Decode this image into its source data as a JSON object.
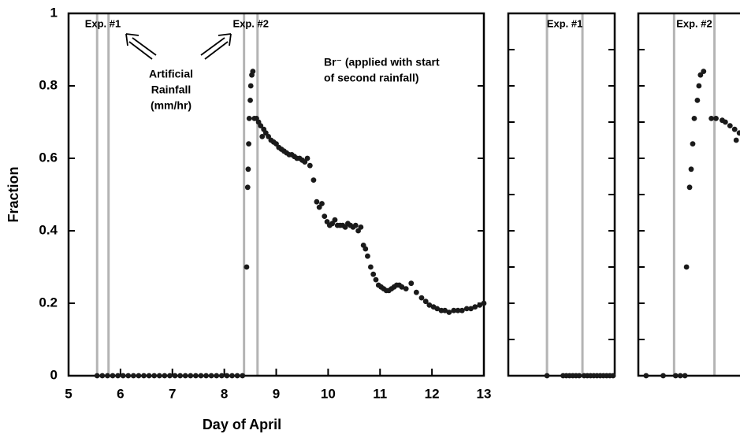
{
  "chart_data": [
    {
      "type": "scatter",
      "xlabel": "Day of April",
      "ylabel": "Fraction",
      "color": "#1a1a1a",
      "vline_color": "#b4b4b4",
      "xlim": [
        5,
        13
      ],
      "ylim": [
        0,
        1
      ],
      "xticks": [
        5,
        6,
        7,
        8,
        9,
        10,
        11,
        12,
        13
      ],
      "yticks": [
        0,
        0.2,
        0.4,
        0.6,
        0.8,
        1
      ],
      "vlines": [
        5.55,
        5.77,
        8.38,
        8.64
      ],
      "exp_labels": [
        "Exp. #1",
        "Exp. #2"
      ],
      "annotations": [
        [
          "Artificial",
          "Rainfall",
          "(mm/hr)"
        ],
        [
          "Br⁻ (applied with start",
          "of second rainfall)"
        ]
      ],
      "x": [
        5.55,
        5.65,
        5.75,
        5.85,
        5.95,
        6.05,
        6.15,
        6.25,
        6.35,
        6.45,
        6.55,
        6.65,
        6.75,
        6.85,
        6.95,
        7.05,
        7.15,
        7.25,
        7.35,
        7.45,
        7.55,
        7.65,
        7.75,
        7.85,
        7.95,
        8.05,
        8.15,
        8.25,
        8.35,
        8.43,
        8.45,
        8.46,
        8.47,
        8.48,
        8.5,
        8.51,
        8.53,
        8.55,
        8.58,
        8.62,
        8.66,
        8.7,
        8.73,
        8.76,
        8.8,
        8.85,
        8.9,
        8.95,
        9.0,
        9.05,
        9.1,
        9.15,
        9.2,
        9.25,
        9.3,
        9.35,
        9.4,
        9.45,
        9.5,
        9.55,
        9.6,
        9.65,
        9.72,
        9.78,
        9.83,
        9.88,
        9.93,
        9.98,
        10.03,
        10.08,
        10.13,
        10.18,
        10.23,
        10.28,
        10.33,
        10.38,
        10.43,
        10.48,
        10.53,
        10.58,
        10.63,
        10.68,
        10.72,
        10.76,
        10.82,
        10.87,
        10.92,
        10.97,
        11.02,
        11.07,
        11.12,
        11.17,
        11.22,
        11.27,
        11.32,
        11.37,
        11.42,
        11.5,
        11.6,
        11.7,
        11.8,
        11.88,
        11.95,
        12.03,
        12.1,
        12.18,
        12.25,
        12.33,
        12.42,
        12.5,
        12.58,
        12.67,
        12.75,
        12.83,
        12.92,
        13.0
      ],
      "values": [
        0,
        0,
        0,
        0,
        0,
        0,
        0,
        0,
        0,
        0,
        0,
        0,
        0,
        0,
        0,
        0,
        0,
        0,
        0,
        0,
        0,
        0,
        0,
        0,
        0,
        0,
        0,
        0,
        0,
        0.3,
        0.52,
        0.57,
        0.64,
        0.71,
        0.76,
        0.8,
        0.83,
        0.84,
        0.71,
        0.71,
        0.7,
        0.69,
        0.66,
        0.68,
        0.67,
        0.66,
        0.65,
        0.645,
        0.64,
        0.63,
        0.625,
        0.62,
        0.615,
        0.61,
        0.61,
        0.605,
        0.6,
        0.6,
        0.595,
        0.59,
        0.6,
        0.58,
        0.54,
        0.48,
        0.465,
        0.475,
        0.44,
        0.425,
        0.415,
        0.42,
        0.43,
        0.415,
        0.415,
        0.415,
        0.41,
        0.42,
        0.415,
        0.41,
        0.415,
        0.4,
        0.41,
        0.36,
        0.35,
        0.33,
        0.3,
        0.28,
        0.265,
        0.25,
        0.245,
        0.24,
        0.235,
        0.235,
        0.24,
        0.245,
        0.25,
        0.25,
        0.245,
        0.24,
        0.255,
        0.23,
        0.215,
        0.205,
        0.195,
        0.19,
        0.185,
        0.18,
        0.18,
        0.175,
        0.18,
        0.18,
        0.18,
        0.185,
        0.185,
        0.19,
        0.195,
        0.2
      ]
    },
    {
      "type": "scatter",
      "color": "#1a1a1a",
      "vline_color": "#b4b4b4",
      "ytick_labels": false,
      "xlim": [
        5.31,
        5.97
      ],
      "ylim": [
        0,
        1
      ],
      "yticks": [
        0,
        0.1,
        0.2,
        0.3,
        0.4,
        0.5,
        0.6,
        0.7,
        0.8,
        0.9,
        1
      ],
      "vlines": [
        5.55,
        5.77
      ],
      "exp_labels": [
        "Exp. #1"
      ],
      "x": [
        5.55,
        5.65,
        5.67,
        5.69,
        5.71,
        5.73,
        5.75,
        5.78,
        5.8,
        5.82,
        5.84,
        5.86,
        5.88,
        5.9,
        5.92,
        5.94,
        5.96
      ],
      "values": [
        0,
        0,
        0,
        0,
        0,
        0,
        0,
        0,
        0,
        0,
        0,
        0,
        0,
        0,
        0,
        0,
        0
      ]
    },
    {
      "type": "scatter",
      "color": "#1a1a1a",
      "vline_color": "#b4b4b4",
      "ytick_labels": false,
      "xlim": [
        8.15,
        8.85
      ],
      "ylim": [
        0,
        1
      ],
      "yticks": [
        0,
        0.1,
        0.2,
        0.3,
        0.4,
        0.5,
        0.6,
        0.7,
        0.8,
        0.9,
        1
      ],
      "vlines": [
        8.38,
        8.64
      ],
      "exp_labels": [
        "Exp. #2"
      ],
      "x": [
        8.2,
        8.31,
        8.39,
        8.42,
        8.45,
        8.46,
        8.48,
        8.49,
        8.5,
        8.51,
        8.53,
        8.54,
        8.55,
        8.57,
        8.62,
        8.65,
        8.69,
        8.71,
        8.74,
        8.77,
        8.78,
        8.8,
        8.82
      ],
      "values": [
        0,
        0,
        0,
        0,
        0,
        0.3,
        0.52,
        0.57,
        0.64,
        0.71,
        0.76,
        0.8,
        0.83,
        0.84,
        0.71,
        0.71,
        0.705,
        0.7,
        0.69,
        0.68,
        0.65,
        0.67,
        0.67
      ]
    }
  ]
}
